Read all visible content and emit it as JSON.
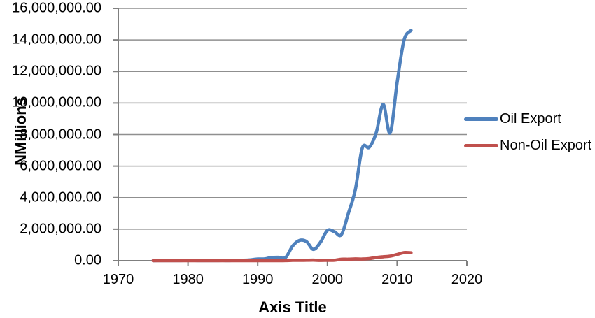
{
  "chart_data": {
    "type": "line",
    "title": "",
    "xlabel": "Axis Title",
    "ylabel": "NMillions",
    "grid": "horizontal",
    "legend_position": "right",
    "xlim": [
      1970,
      2020
    ],
    "ylim": [
      0,
      16000000
    ],
    "x_ticks": [
      1970,
      1980,
      1990,
      2000,
      2010,
      2020
    ],
    "x_tick_labels": [
      "1970",
      "1980",
      "1990",
      "2000",
      "2010",
      "2020"
    ],
    "y_ticks": [
      0,
      2000000,
      4000000,
      6000000,
      8000000,
      10000000,
      12000000,
      14000000,
      16000000
    ],
    "y_tick_labels": [
      "0.00",
      "2,000,000.00",
      "4,000,000.00",
      "6,000,000.00",
      "8,000,000.00",
      "10,000,000.00",
      "12,000,000.00",
      "14,000,000.00",
      "16,000,000.00"
    ],
    "x": [
      1975,
      1976,
      1977,
      1978,
      1979,
      1980,
      1981,
      1982,
      1983,
      1984,
      1985,
      1986,
      1987,
      1988,
      1989,
      1990,
      1991,
      1992,
      1993,
      1994,
      1995,
      1996,
      1997,
      1998,
      1999,
      2000,
      2001,
      2002,
      2003,
      2004,
      2005,
      2006,
      2007,
      2008,
      2009,
      2010,
      2011,
      2012
    ],
    "series": [
      {
        "name": "Oil Export",
        "color": "#4F81BD",
        "values": [
          4563,
          6196,
          7073,
          5402,
          10166,
          13632,
          10681,
          8003,
          7201,
          8841,
          11224,
          8368,
          28209,
          28435,
          55017,
          106627,
          116858,
          201384,
          213779,
          200710,
          927565,
          1286216,
          1212499,
          717787,
          1169477,
          1920900,
          1839945,
          1649446,
          2993110,
          4489472,
          7140579,
          7191086,
          8110500,
          9913651,
          8105456,
          11300522,
          14000000,
          14600000
        ]
      },
      {
        "name": "Non-Oil Export",
        "color": "#C0504D",
        "values": [
          362,
          429,
          558,
          663,
          670,
          554,
          343,
          203,
          301,
          247,
          497,
          552,
          2152,
          2757,
          2954,
          3260,
          4677,
          4228,
          4991,
          5349,
          23096,
          23328,
          29163,
          34070,
          19493,
          24823,
          28009,
          94732,
          94776,
          113309,
          105956,
          133595,
          199258,
          247839,
          289153,
          396377,
          513659,
          500000
        ]
      }
    ]
  },
  "colors": {
    "grid": "#8F8F8F",
    "axis": "#7F7F7F",
    "text": "#000000",
    "background": "#FFFFFF"
  }
}
